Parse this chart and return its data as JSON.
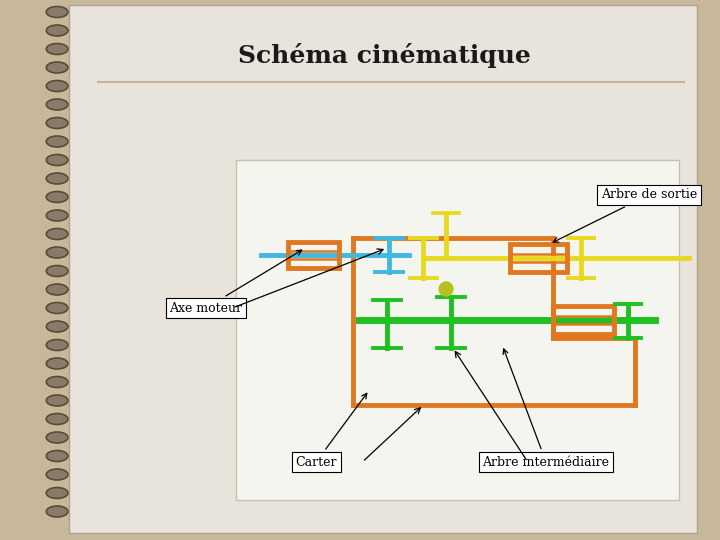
{
  "title": "Schéma cinématique",
  "bg_page_color": "#c8b89a",
  "page_color": "#e8e4dc",
  "diagram_bg_color": "#f5f5f0",
  "separator_color": "#c8b09a",
  "spiral_color": "#8a7a6a",
  "spiral_edge": "#5a4a3a",
  "title_fontsize": 18,
  "label_fontsize": 9,
  "line_width": 3.5,
  "colors": {
    "orange": "#e07820",
    "cyan": "#40b8e0",
    "yellow": "#e8d820",
    "green": "#20c020",
    "yellow_green": "#b8c020"
  },
  "annotations": {
    "arbre_sortie": "Arbre de sortie",
    "axe_moteur": "Axe moteur",
    "carter": "Carter",
    "arbre_intermediaire": "Arbre intermédiaire"
  }
}
